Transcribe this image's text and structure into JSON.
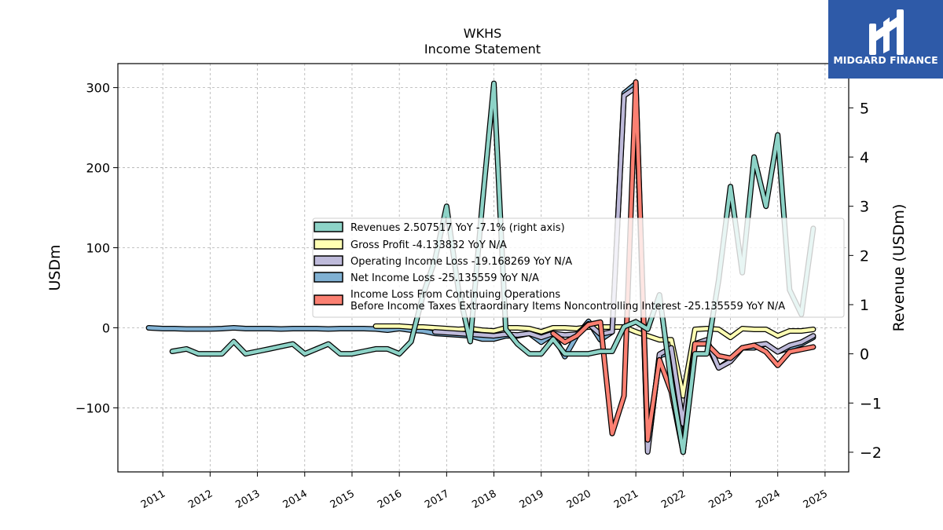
{
  "chart_data": {
    "type": "line",
    "title": "WKHS",
    "subtitle": "Income Statement",
    "ylabel": "USDm",
    "ylabel_right": "Revenue (USDm)",
    "ylim": [
      -180,
      330
    ],
    "ylim_right": [
      -2.4,
      5.9
    ],
    "yticks": [
      -100,
      0,
      100,
      200,
      300
    ],
    "yticks_labels": [
      "−100",
      "0",
      "100",
      "200",
      "300"
    ],
    "yticks_right": [
      -2,
      -1,
      0,
      1,
      2,
      3,
      4,
      5
    ],
    "yticks_right_labels": [
      "−2",
      "−1",
      "0",
      "1",
      "2",
      "3",
      "4",
      "5"
    ],
    "xlim": [
      2010.05,
      2025.5
    ],
    "xticks": [
      2011,
      2012,
      2013,
      2014,
      2015,
      2016,
      2017,
      2018,
      2019,
      2020,
      2021,
      2022,
      2023,
      2024,
      2025
    ],
    "xticks_labels": [
      "2011",
      "2012",
      "2013",
      "2014",
      "2015",
      "2016",
      "2017",
      "2018",
      "2019",
      "2020",
      "2021",
      "2022",
      "2023",
      "2024",
      "2025"
    ],
    "grid": true,
    "legend_position": "center-right",
    "series": [
      {
        "name": "Net Income Loss  -25.135559 YoY N/A",
        "color": "#80b1d3",
        "axis": "left",
        "x": [
          2010.7,
          2011.0,
          2011.25,
          2011.5,
          2011.75,
          2012.0,
          2012.25,
          2012.5,
          2012.75,
          2013.0,
          2013.25,
          2013.5,
          2013.75,
          2014.0,
          2014.25,
          2014.5,
          2014.75,
          2015.0,
          2015.25,
          2015.5,
          2015.75,
          2016.0,
          2016.25,
          2016.5,
          2016.75,
          2017.0,
          2017.25,
          2017.5,
          2017.75,
          2018.0,
          2018.25,
          2018.5,
          2018.75,
          2019.0,
          2019.25,
          2019.5,
          2019.75,
          2020.0,
          2020.25,
          2020.5,
          2020.75,
          2021.0,
          2021.25,
          2021.5,
          2021.75,
          2022.0,
          2022.25,
          2022.5,
          2022.75,
          2023.0,
          2023.25,
          2023.5,
          2023.75,
          2024.0,
          2024.25,
          2024.5,
          2024.75
        ],
        "values": [
          0,
          -1,
          -1,
          -1.5,
          -1.5,
          -1.5,
          -1,
          0,
          -1,
          -1,
          -1,
          -1.5,
          -1,
          -1,
          -1,
          -1.5,
          -1,
          -1,
          -1,
          -1.5,
          -3,
          -1,
          -3,
          -4,
          -7,
          -8,
          -9,
          -10,
          -14,
          -14,
          -10,
          -10,
          -7,
          -18,
          -8,
          -36,
          -10,
          8,
          -15,
          -5,
          293,
          305,
          -152,
          -35,
          -30,
          -155,
          -20,
          -20,
          -50,
          -40,
          -25,
          -25,
          -20,
          -30,
          -25,
          -20,
          -12
        ]
      },
      {
        "name": "Gross Profit  -4.133832 YoY N/A",
        "color": "#ffffb3",
        "axis": "left",
        "x": [
          2015.5,
          2015.75,
          2016.0,
          2016.25,
          2016.5,
          2016.75,
          2017.0,
          2017.25,
          2017.5,
          2017.75,
          2018.0,
          2018.25,
          2018.5,
          2018.75,
          2019.0,
          2019.25,
          2019.5,
          2019.75,
          2020.0,
          2020.25,
          2020.5,
          2020.75,
          2021.0,
          2021.25,
          2021.5,
          2021.75,
          2022.0,
          2022.25,
          2022.5,
          2022.75,
          2023.0,
          2023.25,
          2023.5,
          2023.75,
          2024.0,
          2024.25,
          2024.5,
          2024.75
        ],
        "values": [
          2,
          2,
          2,
          1,
          1,
          0,
          -1,
          -2,
          -1,
          -3,
          -4,
          0,
          0,
          -1,
          -5,
          0,
          0,
          -1,
          1,
          1,
          1,
          1,
          -5,
          -10,
          -15,
          -15,
          -85,
          -2,
          -1,
          -2,
          -12,
          -1,
          -2,
          -2,
          -10,
          -4,
          -4,
          -2
        ]
      },
      {
        "name": "Operating Income Loss  -19.168269 YoY N/A",
        "color": "#bebada",
        "axis": "left",
        "x": [
          2016.75,
          2017.0,
          2017.25,
          2017.5,
          2017.75,
          2018.0,
          2018.25,
          2018.5,
          2018.75,
          2019.0,
          2019.25,
          2019.5,
          2019.75,
          2020.0,
          2020.25,
          2020.5,
          2020.75,
          2021.0,
          2021.25,
          2021.5,
          2021.75,
          2022.0,
          2022.25,
          2022.5,
          2022.75,
          2023.0,
          2023.25,
          2023.5,
          2023.75,
          2024.0,
          2024.25,
          2024.5,
          2024.75
        ],
        "values": [
          -5,
          -6,
          -7,
          -8,
          -9,
          -10,
          -8,
          -9,
          -7,
          -12,
          -7,
          -9,
          -8,
          5,
          -8,
          -5,
          290,
          300,
          -155,
          -33,
          -25,
          -120,
          -20,
          -15,
          -50,
          -42,
          -25,
          -22,
          -20,
          -30,
          -22,
          -18,
          -10
        ]
      },
      {
        "name": "Income Loss From Continuing Operations\nBefore Income Taxes Extraordinary Items Noncontrolling Interest  -25.135559 YoY N/A",
        "color": "#fb8072",
        "axis": "left",
        "x": [
          2019.25,
          2019.5,
          2019.75,
          2020.0,
          2020.25,
          2020.5,
          2020.75,
          2021.0,
          2021.25,
          2021.5,
          2021.75,
          2022.0,
          2022.25,
          2022.5,
          2022.75,
          2023.0,
          2023.25,
          2023.5,
          2023.75,
          2024.0,
          2024.25,
          2024.5,
          2024.75
        ],
        "values": [
          -7,
          -18,
          -10,
          4,
          7,
          -132,
          -85,
          307,
          -140,
          -40,
          -80,
          -155,
          -20,
          -20,
          -35,
          -38,
          -25,
          -22,
          -30,
          -47,
          -30,
          -27,
          -24
        ]
      },
      {
        "name": "Revenues  2.507517 YoY -7.1% (right axis)",
        "color": "#8dd3c7",
        "axis": "right",
        "x": [
          2011.2,
          2011.5,
          2011.75,
          2012.0,
          2012.25,
          2012.5,
          2012.75,
          2013.0,
          2013.25,
          2013.5,
          2013.75,
          2014.0,
          2014.25,
          2014.5,
          2014.75,
          2015.0,
          2015.25,
          2015.5,
          2015.75,
          2016.0,
          2016.25,
          2016.5,
          2016.75,
          2017.0,
          2017.25,
          2017.5,
          2017.75,
          2018.0,
          2018.25,
          2018.5,
          2018.75,
          2019.0,
          2019.25,
          2019.5,
          2019.75,
          2020.0,
          2020.25,
          2020.5,
          2020.75,
          2021.0,
          2021.25,
          2021.5,
          2021.75,
          2022.0,
          2022.25,
          2022.5,
          2022.75,
          2023.0,
          2023.25,
          2023.5,
          2023.75,
          2024.0,
          2024.25,
          2024.5,
          2024.75
        ],
        "values": [
          0.05,
          0.1,
          0.0,
          0.0,
          0.0,
          0.25,
          0.0,
          0.05,
          0.1,
          0.15,
          0.2,
          0.0,
          0.1,
          0.2,
          0.0,
          0.0,
          0.05,
          0.1,
          0.1,
          0.0,
          0.25,
          1.2,
          1.9,
          3.0,
          1.3,
          0.25,
          3.0,
          5.5,
          0.5,
          0.2,
          0.0,
          0.0,
          0.3,
          0.0,
          0.0,
          0.0,
          0.05,
          0.05,
          0.55,
          0.65,
          0.5,
          1.2,
          -0.6,
          -2.0,
          0.0,
          0.0,
          1.5,
          3.4,
          1.65,
          4.0,
          3.0,
          4.45,
          1.3,
          0.8,
          2.55
        ]
      }
    ],
    "legend_order": [
      4,
      1,
      2,
      0,
      3
    ]
  },
  "logo": {
    "text": "MIDGARD FINANCE",
    "bg_color": "#2e5aa8"
  }
}
